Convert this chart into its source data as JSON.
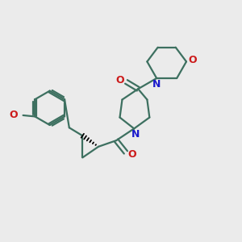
{
  "bg_color": "#ebebeb",
  "bond_color": "#3d7060",
  "n_color": "#1a1acc",
  "o_color": "#cc1a1a",
  "lw": 1.6,
  "figsize": [
    3.0,
    3.0
  ],
  "dpi": 100,
  "xlim": [
    0,
    10
  ],
  "ylim": [
    0,
    10
  ]
}
